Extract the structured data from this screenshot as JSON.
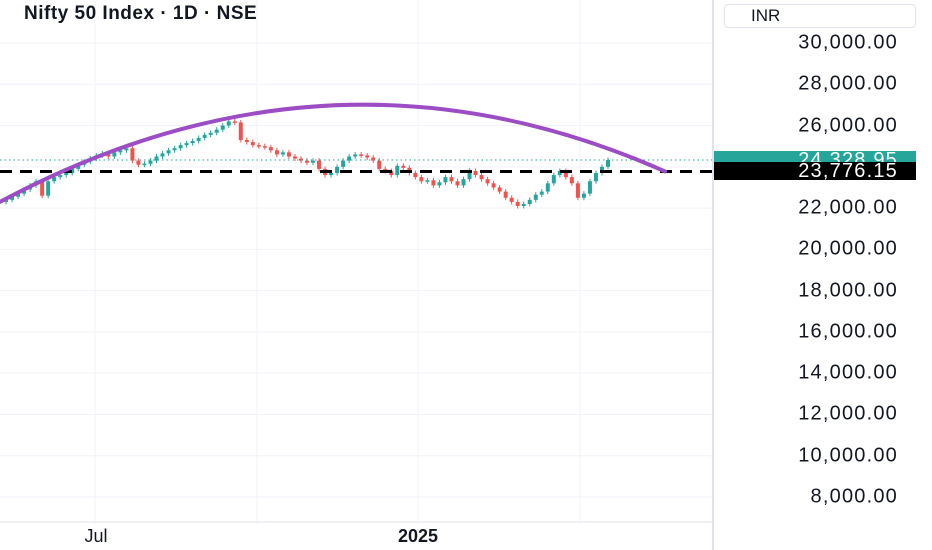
{
  "header": {
    "title": "Nifty 50 Index · 1D · NSE",
    "currency": "INR"
  },
  "colors": {
    "up": "#26a69a",
    "down": "#ef5350",
    "arc": "#9c4dc4",
    "last_price_bg": "#26a69a",
    "support_bg": "#000000",
    "grid": "#f0f3fa"
  },
  "chart_data": {
    "type": "line",
    "title": "Nifty 50 Index · 1D · NSE",
    "xlabel": "",
    "ylabel": "",
    "ylim": [
      7000,
      31000
    ],
    "x_ticks": [
      "Jul",
      "2025"
    ],
    "y_ticks": [
      "30,000.00",
      "28,000.00",
      "26,000.00",
      "22,000.00",
      "20,000.00",
      "18,000.00",
      "16,000.00",
      "14,000.00",
      "12,000.00",
      "10,000.00",
      "8,000.00"
    ],
    "y_tick_values": [
      30000,
      28000,
      26000,
      22000,
      20000,
      18000,
      16000,
      14000,
      12000,
      10000,
      8000
    ],
    "grid": true,
    "price_series": {
      "values": [
        22400,
        22550,
        22700,
        22900,
        23100,
        23300,
        22600,
        23300,
        23500,
        23600,
        23700,
        23900,
        24100,
        24250,
        24400,
        24550,
        24650,
        24500,
        24700,
        24800,
        24900,
        24300,
        24100,
        24150,
        24300,
        24500,
        24650,
        24800,
        24900,
        25050,
        25150,
        25250,
        25400,
        25550,
        25650,
        25800,
        26000,
        26200,
        26150,
        25300,
        25200,
        25050,
        25000,
        24950,
        24800,
        24600,
        24700,
        24500,
        24400,
        24300,
        24200,
        24300,
        23900,
        23600,
        23700,
        24000,
        24300,
        24500,
        24600,
        24550,
        24450,
        24300,
        23900,
        23800,
        23600,
        24050,
        23950,
        23700,
        23500,
        23300,
        23350,
        23100,
        23250,
        23500,
        23300,
        23100,
        23400,
        23800,
        23600,
        23400,
        23200,
        23000,
        22800,
        22500,
        22300,
        22100,
        22200,
        22400,
        22650,
        22800,
        23200,
        23600,
        23800,
        23500,
        23200,
        22500,
        22700,
        23300,
        23700,
        24000,
        24330
      ]
    },
    "arc": {
      "points": [
        [
          0,
          22300
        ],
        [
          0.35,
          26400
        ],
        [
          1,
          23776.15
        ]
      ]
    },
    "annotations": [
      {
        "label": "24,328.95",
        "value": 24328.95,
        "style": "last-price"
      },
      {
        "label": "23,776.15",
        "value": 23776.15,
        "style": "dashed-support"
      }
    ]
  }
}
